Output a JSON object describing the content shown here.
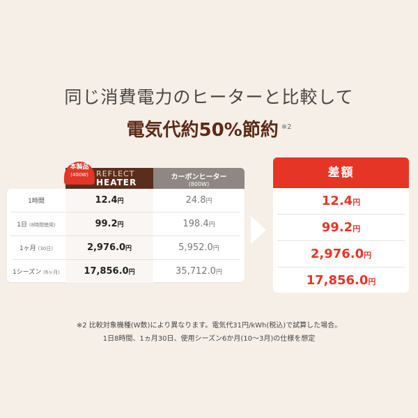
{
  "headline": "同じ消費電力のヒーターと比較して",
  "headline2": "電気代約50%節約",
  "headline2_note": "※2",
  "table": {
    "badge_line1": "本製品",
    "badge_line2": "(400W)",
    "ours_line1": "REFLECT",
    "ours_line2": "HEATER",
    "other_line1": "カーボンヒーター",
    "other_line2": "(800W)",
    "unit": "円",
    "rows": [
      {
        "label": "1時間",
        "label_small": "",
        "ours": "12.4",
        "other": "24.8"
      },
      {
        "label": "1日",
        "label_small": "(8時間使用)",
        "ours": "99.2",
        "other": "198.4"
      },
      {
        "label": "1ヶ月",
        "label_small": "(30日)",
        "ours": "2,976.0",
        "other": "5,952.0"
      },
      {
        "label": "1シーズン",
        "label_small": "(6ヶ月)",
        "ours": "17,856.0",
        "other": "35,712.0"
      }
    ]
  },
  "diff": {
    "title": "差額",
    "values": [
      "12.4",
      "99.2",
      "2,976.0",
      "17,856.0"
    ]
  },
  "footnote_line1": "※2 比較対象機種(W数)により異なります。電気代31円/kWh(税込)で試算した場合。",
  "footnote_line2": "1日8時間、1ヵ月30日、使用シーズン6か月(10～3月)の仕様を想定"
}
